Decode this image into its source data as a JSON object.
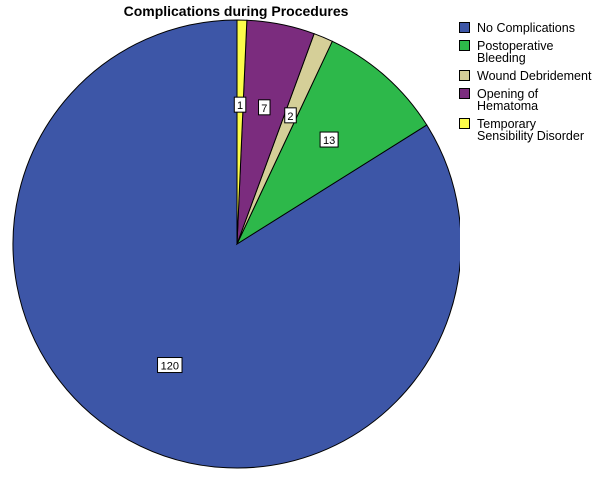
{
  "chart_data": {
    "type": "pie",
    "title": "Complications during Procedures",
    "categories": [
      "No Complications",
      "Postoperative\nBleeding",
      "Wound Debridement",
      "Opening of\nHematoma",
      "Temporary\nSensibility Disorder"
    ],
    "values": [
      120,
      13,
      2,
      7,
      1
    ],
    "colors": [
      "#3d56a7",
      "#2db84a",
      "#d5cf98",
      "#7b2c7e",
      "#fcfc4a"
    ],
    "legend_position": "right",
    "data_labels": [
      "120",
      "13",
      "2",
      "7",
      "1"
    ]
  }
}
